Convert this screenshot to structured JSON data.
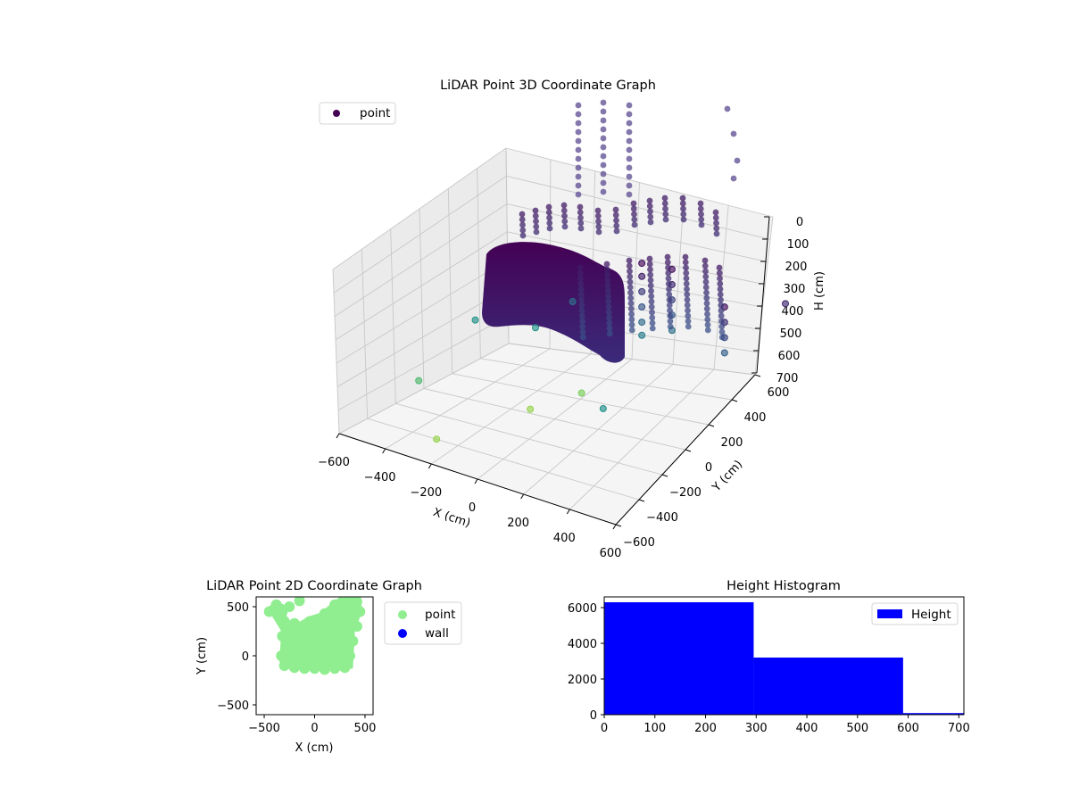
{
  "chart_data": [
    {
      "type": "scatter3d",
      "title": "LiDAR Point 3D Coordinate Graph",
      "xlabel": "X (cm)",
      "ylabel": "Y (cm)",
      "zlabel": "H (cm)",
      "xlim": [
        -600,
        600
      ],
      "ylim": [
        -600,
        600
      ],
      "zlim": [
        0,
        700
      ],
      "z_inverted": true,
      "x_ticks": [
        "−600",
        "−400",
        "−200",
        "0",
        "200",
        "400",
        "600"
      ],
      "y_ticks": [
        "−600",
        "−400",
        "−200",
        "0",
        "200",
        "400",
        "600"
      ],
      "z_ticks": [
        "0",
        "100",
        "200",
        "300",
        "400",
        "500",
        "600",
        "700"
      ],
      "legend": {
        "entries": [
          "point"
        ],
        "placement": "top-left"
      },
      "colormap": "viridis",
      "marker_color": "#440154",
      "series": [
        {
          "name": "point",
          "points": [
            {
              "x": 100,
              "y": 400,
              "z": 20
            },
            {
              "x": 100,
              "y": 400,
              "z": 80
            },
            {
              "x": 100,
              "y": 400,
              "z": 150
            },
            {
              "x": 100,
              "y": 400,
              "z": 220
            },
            {
              "x": 100,
              "y": 400,
              "z": 290
            },
            {
              "x": 100,
              "y": 400,
              "z": 350
            },
            {
              "x": 200,
              "y": 450,
              "z": 30
            },
            {
              "x": 200,
              "y": 450,
              "z": 100
            },
            {
              "x": 200,
              "y": 450,
              "z": 170
            },
            {
              "x": 200,
              "y": 450,
              "z": 240
            },
            {
              "x": 200,
              "y": 450,
              "z": 310
            },
            {
              "x": 520,
              "y": 300,
              "z": 40
            },
            {
              "x": 520,
              "y": 300,
              "z": 110
            },
            {
              "x": 520,
              "y": 300,
              "z": 180
            },
            {
              "x": 520,
              "y": 300,
              "z": 250
            },
            {
              "x": -200,
              "y": 400,
              "z": 300
            },
            {
              "x": -300,
              "y": 300,
              "z": 420
            },
            {
              "x": -500,
              "y": 200,
              "z": 420
            },
            {
              "x": -500,
              "y": -200,
              "z": 560
            },
            {
              "x": -200,
              "y": 100,
              "z": 690
            },
            {
              "x": -100,
              "y": 300,
              "z": 650
            },
            {
              "x": 300,
              "y": -200,
              "z": 410
            },
            {
              "x": 600,
              "y": 600,
              "z": 100
            },
            {
              "x": -300,
              "y": -400,
              "z": 690
            }
          ]
        }
      ]
    },
    {
      "type": "scatter",
      "title": "LiDAR Point 2D Coordinate Graph",
      "xlabel": "X (cm)",
      "ylabel": "Y (cm)",
      "xlim": [
        -580,
        580
      ],
      "ylim": [
        -600,
        600
      ],
      "x_ticks": [
        "−500",
        "0",
        "500"
      ],
      "y_ticks": [
        "−500",
        "0",
        "500"
      ],
      "legend": {
        "entries": [
          "point",
          "wall"
        ],
        "placement": "outside-right"
      },
      "series": [
        {
          "name": "point",
          "color": "#90ee90",
          "points": [
            {
              "x": -450,
              "y": 450
            },
            {
              "x": -380,
              "y": 520
            },
            {
              "x": -320,
              "y": 450
            },
            {
              "x": -300,
              "y": 350
            },
            {
              "x": -320,
              "y": 200
            },
            {
              "x": -330,
              "y": 0
            },
            {
              "x": -300,
              "y": -100
            },
            {
              "x": -200,
              "y": -120
            },
            {
              "x": -100,
              "y": -130
            },
            {
              "x": 0,
              "y": -130
            },
            {
              "x": 100,
              "y": -140
            },
            {
              "x": 200,
              "y": -130
            },
            {
              "x": 300,
              "y": -120
            },
            {
              "x": 350,
              "y": 0
            },
            {
              "x": 380,
              "y": 150
            },
            {
              "x": 420,
              "y": 300
            },
            {
              "x": 450,
              "y": 450
            },
            {
              "x": 420,
              "y": 550
            },
            {
              "x": 300,
              "y": 570
            },
            {
              "x": 200,
              "y": 520
            },
            {
              "x": 100,
              "y": 430
            },
            {
              "x": -50,
              "y": 350
            },
            {
              "x": -200,
              "y": 330
            },
            {
              "x": 0,
              "y": 200
            },
            {
              "x": 150,
              "y": 150
            },
            {
              "x": -150,
              "y": 100
            },
            {
              "x": 50,
              "y": 0
            },
            {
              "x": 250,
              "y": 50
            },
            {
              "x": -250,
              "y": 500
            },
            {
              "x": -150,
              "y": 560
            }
          ]
        },
        {
          "name": "wall",
          "color": "#0000ff",
          "points": []
        }
      ]
    },
    {
      "type": "bar",
      "title": "Height Histogram",
      "xlim": [
        0,
        710
      ],
      "ylim": [
        0,
        6600
      ],
      "x_ticks": [
        "0",
        "100",
        "200",
        "300",
        "400",
        "500",
        "600",
        "700"
      ],
      "y_ticks": [
        "0",
        "2000",
        "4000",
        "6000"
      ],
      "legend": {
        "entries": [
          "Height"
        ],
        "placement": "top-right"
      },
      "color": "#0000ff",
      "series": [
        {
          "name": "Height",
          "bins": [
            {
              "x0": 0,
              "x1": 295,
              "value": 6300
            },
            {
              "x0": 295,
              "x1": 590,
              "value": 3200
            },
            {
              "x0": 590,
              "x1": 710,
              "value": 90
            }
          ]
        }
      ]
    }
  ]
}
